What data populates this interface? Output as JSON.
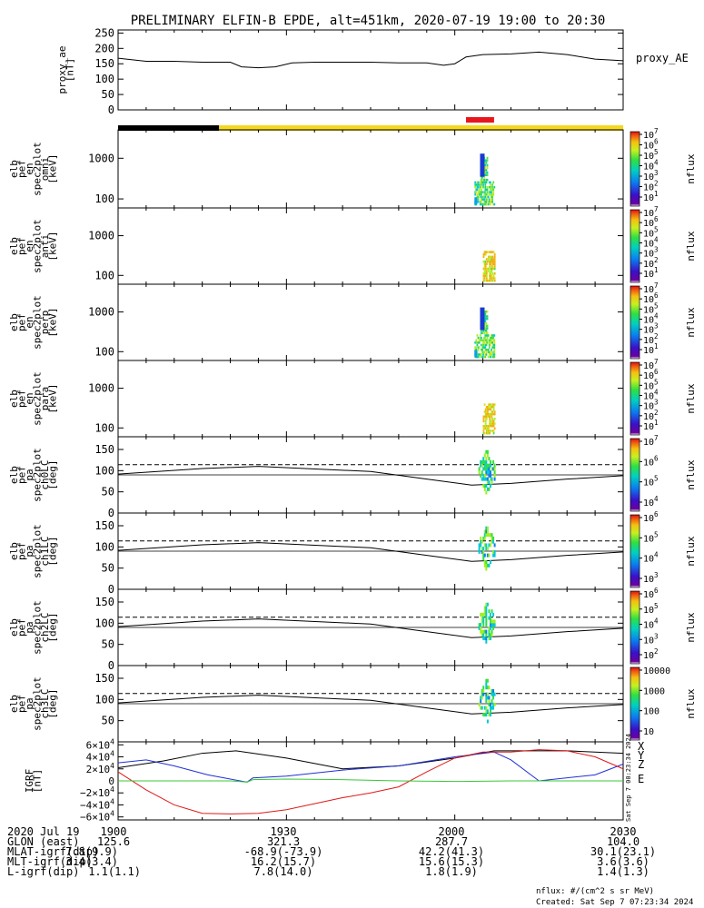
{
  "title": "PRELIMINARY ELFIN-B EPDE, alt=451km, 2020-07-19 19:00 to 20:30",
  "colors": {
    "frame": "#000000",
    "bar_black": "#000000",
    "bar_yellow": "#f5d81e",
    "bar_red": "#e8161c",
    "bfield_x": "#000000",
    "bfield_y": "#1f2fd6",
    "bfield_z": "#e01818",
    "bfield_zero": "#00a000",
    "sat_green": "#38c83a"
  },
  "colorbar_label": "nflux",
  "panels": [
    {
      "id": "proxy_ae",
      "ylabel": [
        "proxy_ae",
        "[nT]"
      ],
      "right_label": "proxy_AE",
      "yticks": [
        "250",
        "200",
        "150",
        "100",
        "50",
        "0"
      ]
    },
    {
      "id": "omni",
      "ylabel": [
        "elb",
        "pef",
        "en",
        "spec2plot",
        "omni",
        "[keV]"
      ],
      "yticks": [
        "1000",
        "100"
      ],
      "cbar_ticks": [
        "10^7",
        "10^6",
        "10^5",
        "10^4",
        "10^3",
        "10^2",
        "10^1"
      ]
    },
    {
      "id": "anti",
      "ylabel": [
        "elb",
        "pef",
        "en",
        "spec2plot",
        "anti",
        "[keV]"
      ],
      "yticks": [
        "1000",
        "100"
      ],
      "cbar_ticks": [
        "10^7",
        "10^6",
        "10^5",
        "10^4",
        "10^3",
        "10^2",
        "10^1"
      ]
    },
    {
      "id": "perp",
      "ylabel": [
        "elb",
        "pef",
        "en",
        "spec2plot",
        "perp",
        "[keV]"
      ],
      "yticks": [
        "1000",
        "100"
      ],
      "cbar_ticks": [
        "10^7",
        "10^6",
        "10^5",
        "10^4",
        "10^3",
        "10^2",
        "10^1"
      ]
    },
    {
      "id": "para",
      "ylabel": [
        "elb",
        "pef",
        "en",
        "spec2plot",
        "para",
        "[keV]"
      ],
      "yticks": [
        "1000",
        "100"
      ],
      "cbar_ticks": [
        "10^7",
        "10^6",
        "10^5",
        "10^4",
        "10^3",
        "10^2",
        "10^1"
      ]
    },
    {
      "id": "ch0LC",
      "ylabel": [
        "elb",
        "pef",
        "pa",
        "spec2plot",
        "ch0LC",
        "[deg]"
      ],
      "yticks": [
        "150",
        "100",
        "50",
        "0"
      ],
      "cbar_ticks": [
        "10^7",
        "10^6",
        "10^5",
        "10^4"
      ]
    },
    {
      "id": "ch1LC",
      "ylabel": [
        "elb",
        "pef",
        "pa",
        "spec2plot",
        "ch1LC",
        "[deg]"
      ],
      "yticks": [
        "150",
        "100",
        "50",
        "0"
      ],
      "cbar_ticks": [
        "10^6",
        "10^5",
        "10^4",
        "10^3"
      ]
    },
    {
      "id": "ch2LC",
      "ylabel": [
        "elb",
        "pef",
        "pa",
        "spec2plot",
        "ch2LC",
        "[deg]"
      ],
      "yticks": [
        "150",
        "100",
        "50",
        "0"
      ],
      "cbar_ticks": [
        "10^6",
        "10^5",
        "10^4",
        "10^3",
        "10^2"
      ]
    },
    {
      "id": "ch3LC",
      "ylabel": [
        "elb",
        "pef",
        "pa",
        "spec2plot",
        "ch3LC",
        "[deg]"
      ],
      "yticks": [
        "150",
        "100",
        "50"
      ],
      "cbar_ticks": [
        "10000",
        "1000",
        "100",
        "10"
      ]
    },
    {
      "id": "bfield",
      "ylabel": [
        "IGRF",
        "[nT]"
      ],
      "yticks": [
        "6×10^4",
        "4×10^4",
        "2×10^4",
        "0",
        "−2×10^4",
        "−4×10^4",
        "−6×10^4"
      ],
      "legend": [
        "X",
        "Y",
        "Z",
        "E"
      ],
      "side_text": "Sat Sep 7 00:23:34 2024"
    }
  ],
  "footer": {
    "rows": [
      [
        "2020 Jul 19",
        "1900",
        "1930",
        "2000",
        "2030"
      ],
      [
        "GLON (east)",
        "125.6",
        "321.3",
        "287.7",
        "104.0"
      ],
      [
        "MLAT-igrf(dip)",
        "7.8(9.9)",
        "-68.9(-73.9)",
        "42.2(41.3)",
        "30.1(23.1)"
      ],
      [
        "MLT-igrf(dip)",
        "3.4(3.4)",
        "16.2(15.7)",
        "15.6(15.3)",
        "3.6(3.6)"
      ],
      [
        "L-igrf(dip)",
        "1.1(1.1)",
        "7.8(14.0)",
        "1.8(1.9)",
        "1.4(1.3)"
      ]
    ],
    "units_note": "nflux: #/(cm^2 s sr MeV)",
    "created": "Created: Sat Sep  7 07:23:34 2024"
  },
  "chart_data": [
    {
      "type": "line",
      "id": "proxy_ae",
      "xlabel": "",
      "ylabel": "proxy_ae [nT]",
      "xlim": [
        0,
        90
      ],
      "ylim": [
        0,
        260
      ],
      "series": [
        {
          "name": "proxy_AE",
          "x": [
            0,
            5,
            10,
            15,
            20,
            22,
            25,
            28,
            31,
            35,
            40,
            45,
            50,
            55,
            58,
            60,
            62,
            65,
            70,
            75,
            80,
            85,
            90
          ],
          "y": [
            168,
            158,
            158,
            155,
            155,
            140,
            137,
            140,
            153,
            155,
            155,
            155,
            153,
            153,
            145,
            150,
            172,
            180,
            182,
            188,
            180,
            165,
            160
          ]
        }
      ]
    },
    {
      "type": "line",
      "id": "orbit_bar",
      "segments": [
        {
          "from": 0,
          "to": 18,
          "color": "black"
        },
        {
          "from": 18,
          "to": 90,
          "color": "yellow"
        },
        {
          "from": 62,
          "to": 67,
          "color": "red"
        }
      ]
    },
    {
      "type": "heatmap",
      "id": "spectrograms",
      "x_range_min": [
        63,
        67
      ],
      "y_range_keV": [
        60,
        5000
      ],
      "zlim": [
        10,
        10000000
      ],
      "zlabel": "nflux"
    },
    {
      "type": "line",
      "id": "loss_cone",
      "ylim": [
        0,
        180
      ],
      "series": [
        {
          "name": "solid",
          "x": [
            0,
            15,
            25,
            45,
            55,
            63,
            70,
            80,
            90
          ],
          "y": [
            92,
            105,
            110,
            98,
            80,
            66,
            70,
            80,
            88
          ]
        },
        {
          "name": "dashed",
          "x": [
            0,
            90
          ],
          "y": [
            114,
            114
          ]
        }
      ]
    },
    {
      "type": "line",
      "id": "bfield",
      "ylim": [
        -60000,
        60000
      ],
      "xlim": [
        0,
        90
      ],
      "series": [
        {
          "name": "X",
          "x": [
            0,
            8,
            15,
            21,
            30,
            40,
            50,
            60,
            67,
            75,
            80,
            90
          ],
          "y": [
            22000,
            33000,
            46000,
            50000,
            38000,
            20000,
            25000,
            38000,
            50000,
            50000,
            50000,
            46000
          ]
        },
        {
          "name": "Y",
          "x": [
            0,
            5,
            10,
            16,
            20,
            23,
            24,
            30,
            40,
            50,
            60,
            67,
            70,
            75,
            85,
            90
          ],
          "y": [
            30000,
            35000,
            25000,
            10000,
            3000,
            -2000,
            5000,
            8000,
            18000,
            25000,
            40000,
            48000,
            35000,
            0,
            10000,
            28000
          ]
        },
        {
          "name": "Z",
          "x": [
            0,
            5,
            10,
            15,
            20,
            25,
            30,
            35,
            40,
            45,
            50,
            55,
            60,
            65,
            70,
            75,
            80,
            85,
            90
          ],
          "y": [
            15000,
            -15000,
            -40000,
            -54000,
            -55000,
            -54000,
            -48000,
            -38000,
            -28000,
            -20000,
            -10000,
            15000,
            38000,
            48000,
            48000,
            52000,
            50000,
            40000,
            20000
          ]
        },
        {
          "name": "E",
          "x": [
            0,
            20,
            23,
            24,
            30,
            40,
            50,
            60,
            70,
            80,
            90
          ],
          "y": [
            0,
            0,
            -2000,
            2000,
            3000,
            2000,
            0,
            -1000,
            0,
            0,
            0
          ]
        }
      ]
    }
  ]
}
